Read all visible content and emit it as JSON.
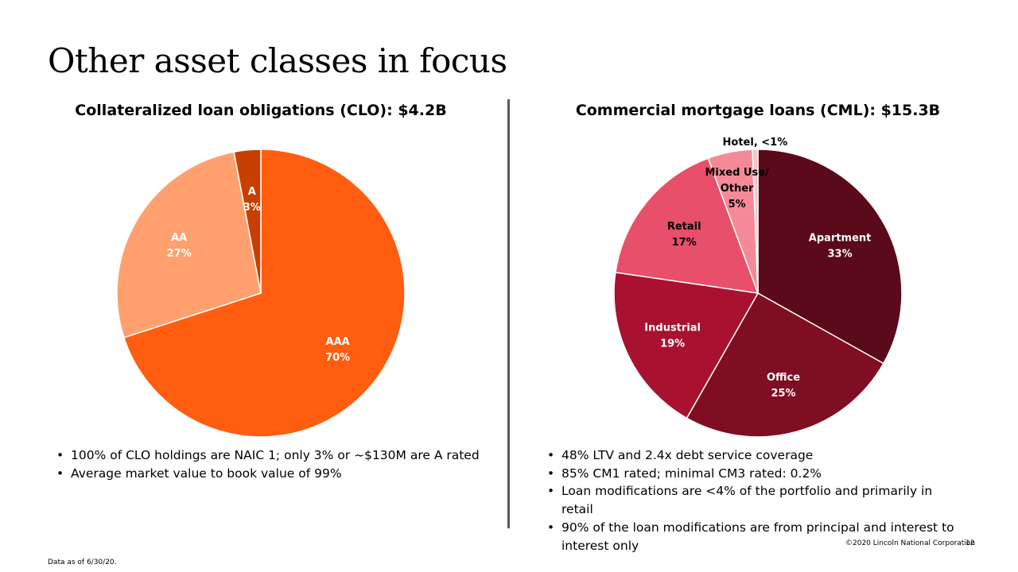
{
  "title": "Other asset classes in focus",
  "footnote": "Data as of 6/30/20.",
  "copyright": "©2020 Lincoln National Corporation",
  "page_number": "12",
  "chart_data": [
    {
      "type": "pie",
      "title": "Collateralized loan obligations (CLO): $4.2B",
      "start_angle_deg": 0,
      "direction": "clockwise",
      "slices": [
        {
          "label": "AAA",
          "value": 70,
          "display": "70%",
          "color": "#FF5D0F",
          "label_color": "#FFFFFF"
        },
        {
          "label": "AA",
          "value": 27,
          "display": "27%",
          "color": "#FFA06E",
          "label_color": "#FFFFFF"
        },
        {
          "label": "A",
          "value": 3,
          "display": "3%",
          "color": "#C84000",
          "label_color": "#FFFFFF"
        }
      ],
      "bullets": [
        "100% of CLO holdings are NAIC 1; only 3% or ~$130M are A rated",
        "Average market value to book value of 99%"
      ]
    },
    {
      "type": "pie",
      "title": "Commercial mortgage loans (CML): $15.3B",
      "start_angle_deg": 0,
      "direction": "clockwise",
      "slices": [
        {
          "label": "Apartment",
          "value": 33,
          "display": "33%",
          "color": "#5A0A18",
          "label_color": "#FFFFFF"
        },
        {
          "label": "Office",
          "value": 25,
          "display": "25%",
          "color": "#800E22",
          "label_color": "#FFFFFF"
        },
        {
          "label": "Industrial",
          "value": 19,
          "display": "19%",
          "color": "#A8122E",
          "label_color": "#FFFFFF"
        },
        {
          "label": "Retail",
          "value": 17,
          "display": "17%",
          "color": "#E84F6A",
          "label_color": "#000000"
        },
        {
          "label": "Mixed Use/ Other",
          "value": 5,
          "display": "5%",
          "color": "#F48A98",
          "label_color": "#000000"
        },
        {
          "label": "Hotel, <1%",
          "value": 0.6,
          "display": "",
          "color": "#F9C3CB",
          "label_color": "#000000"
        }
      ],
      "bullets": [
        "48% LTV and 2.4x debt service coverage",
        "85% CM1 rated; minimal CM3 rated: 0.2%",
        "Loan modifications are <4% of the portfolio and primarily in retail",
        "90% of the loan modifications are from principal and interest to interest only"
      ]
    }
  ]
}
